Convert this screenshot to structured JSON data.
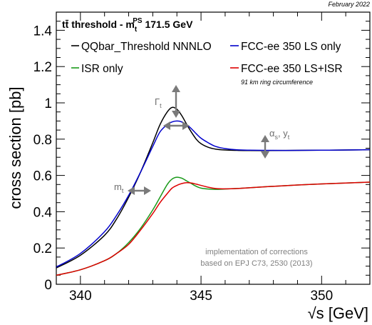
{
  "chart_data": {
    "type": "line",
    "date_note": "February 2022",
    "title": "tt̄ threshold - m",
    "title_sup": "PS",
    "title_sub": "t",
    "title_tail": " 171.5 GeV",
    "xlabel": "√s [GeV]",
    "ylabel": "cross section [pb]",
    "xlim": [
      339.0,
      352.0
    ],
    "ylim": [
      0.0,
      1.5
    ],
    "xticks": [
      340,
      345,
      350
    ],
    "yticks": [
      0,
      0.2,
      0.4,
      0.6,
      0.8,
      1,
      1.2,
      1.4
    ],
    "legend_note": "91 km ring circumference",
    "annotation_lines": [
      "implementation of corrections",
      "based on EPJ C73, 2530 (2013)"
    ],
    "params": {
      "gamma": {
        "base": "Γ",
        "sub": "t"
      },
      "width": {
        "base": "α",
        "sub": "s",
        "sep": ", y",
        "sub2": "t"
      },
      "mass": {
        "base": "m",
        "sub": "t"
      }
    },
    "series": [
      {
        "name": "QQbar_Threshold NNNLO",
        "color": "#000000",
        "x": [
          339.0,
          340.0,
          341.0,
          341.5,
          342.0,
          342.5,
          343.0,
          343.3,
          343.6,
          343.8,
          344.0,
          344.2,
          344.5,
          344.8,
          345.0,
          345.3,
          345.6,
          346.0,
          346.5,
          347.0,
          348.0,
          349.0,
          350.0,
          351.0,
          352.0
        ],
        "y": [
          0.09,
          0.16,
          0.27,
          0.36,
          0.48,
          0.62,
          0.78,
          0.88,
          0.95,
          0.975,
          0.965,
          0.93,
          0.86,
          0.8,
          0.775,
          0.755,
          0.745,
          0.74,
          0.738,
          0.737,
          0.737,
          0.738,
          0.739,
          0.74,
          0.742
        ]
      },
      {
        "name": "ISR only",
        "color": "#1a9a1a",
        "x": [
          339.0,
          340.0,
          341.0,
          341.5,
          342.0,
          342.5,
          343.0,
          343.3,
          343.6,
          343.8,
          344.0,
          344.2,
          344.4,
          344.6,
          344.8,
          345.0,
          345.3,
          345.6,
          346.0,
          346.5,
          347.0,
          348.0,
          349.0,
          350.0,
          351.0,
          352.0
        ],
        "y": [
          0.05,
          0.08,
          0.13,
          0.17,
          0.23,
          0.31,
          0.41,
          0.48,
          0.55,
          0.58,
          0.59,
          0.585,
          0.57,
          0.555,
          0.54,
          0.53,
          0.525,
          0.523,
          0.525,
          0.528,
          0.532,
          0.54,
          0.547,
          0.553,
          0.558,
          0.563
        ]
      },
      {
        "name": "FCC-ee 350 LS only",
        "color": "#0000cc",
        "x": [
          339.0,
          340.0,
          341.0,
          341.5,
          342.0,
          342.5,
          343.0,
          343.3,
          343.6,
          343.8,
          344.0,
          344.2,
          344.5,
          344.8,
          345.0,
          345.3,
          345.6,
          346.0,
          346.5,
          347.0,
          348.0,
          349.0,
          350.0,
          351.0,
          352.0
        ],
        "y": [
          0.095,
          0.17,
          0.29,
          0.38,
          0.49,
          0.62,
          0.76,
          0.84,
          0.88,
          0.895,
          0.9,
          0.895,
          0.87,
          0.83,
          0.805,
          0.78,
          0.76,
          0.748,
          0.741,
          0.739,
          0.738,
          0.738,
          0.739,
          0.74,
          0.742
        ]
      },
      {
        "name": "FCC-ee 350 LS+ISR",
        "color": "#dd0000",
        "x": [
          339.0,
          340.0,
          341.0,
          341.5,
          342.0,
          342.5,
          343.0,
          343.3,
          343.6,
          343.8,
          344.0,
          344.2,
          344.4,
          344.6,
          344.8,
          345.0,
          345.3,
          345.6,
          346.0,
          346.5,
          347.0,
          348.0,
          349.0,
          350.0,
          351.0,
          352.0
        ],
        "y": [
          0.05,
          0.08,
          0.13,
          0.17,
          0.22,
          0.3,
          0.39,
          0.45,
          0.5,
          0.53,
          0.545,
          0.555,
          0.56,
          0.558,
          0.552,
          0.545,
          0.535,
          0.528,
          0.526,
          0.528,
          0.532,
          0.54,
          0.547,
          0.553,
          0.558,
          0.563
        ]
      }
    ]
  }
}
